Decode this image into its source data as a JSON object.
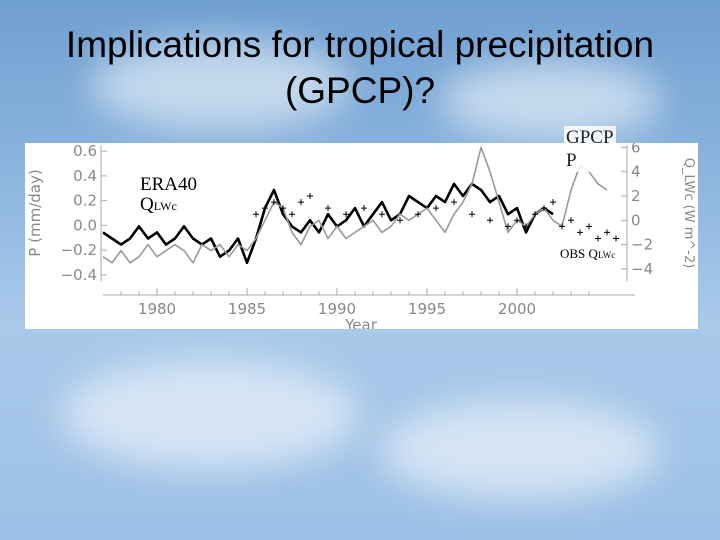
{
  "slide": {
    "title_line1": "Implications for tropical precipitation",
    "title_line2": "(GPCP)?"
  },
  "labels": {
    "era40": "ERA40",
    "q_main": "Q",
    "q_sub": "LWc",
    "gpcp_line1": "GPCP",
    "gpcp_line2": "P",
    "obs_main": "OBS Q",
    "obs_sub": "LWc"
  },
  "colors": {
    "era40": "#000000",
    "gpcp": "#999999",
    "obs": "#000000"
  },
  "chart_data": {
    "type": "line",
    "xlabel": "Year",
    "ylabel": "P (mm/day)",
    "ylabel_right": "Q_LWc (W m^-2)",
    "xlim": [
      1977,
      2006
    ],
    "ylim": [
      -0.45,
      0.65
    ],
    "ylim_right": [
      -5,
      6.2
    ],
    "x_ticks": [
      1980,
      1985,
      1990,
      1995,
      2000
    ],
    "y_ticks": [
      -0.4,
      -0.2,
      0.0,
      0.2,
      0.4,
      0.6
    ],
    "y_tick_labels": [
      "−0.4",
      "−0.2",
      "0.0",
      "0.2",
      "0.4",
      "0.6"
    ],
    "y_ticks_right": [
      -4,
      -2,
      0,
      2,
      4,
      6
    ],
    "y_tick_labels_right": [
      "−4",
      "−2",
      "0",
      "2",
      "4",
      "6"
    ],
    "series": [
      {
        "axis": "right",
        "style": "thick",
        "x": [
          1977.0,
          1977.5,
          1978.0,
          1978.5,
          1979.0,
          1979.5,
          1980.0,
          1980.5,
          1981.0,
          1981.5,
          1982.0,
          1982.5,
          1983.0,
          1983.5,
          1984.0,
          1984.5,
          1985.0,
          1985.5,
          1986.0,
          1986.5,
          1987.0,
          1987.5,
          1988.0,
          1988.5,
          1989.0,
          1989.5,
          1990.0,
          1990.5,
          1991.0,
          1991.5,
          1992.0,
          1992.5,
          1993.0,
          1993.5,
          1994.0,
          1994.5,
          1995.0,
          1995.5,
          1996.0,
          1996.5,
          1997.0,
          1997.5,
          1998.0,
          1998.5,
          1999.0,
          1999.5,
          2000.0,
          2000.5,
          2001.0,
          2001.5,
          2002.0
        ],
        "values": [
          -1.0,
          -1.5,
          -2.0,
          -1.5,
          -0.5,
          -1.5,
          -1.0,
          -2.0,
          -1.5,
          -0.5,
          -1.5,
          -2.0,
          -1.5,
          -3.0,
          -2.5,
          -1.5,
          -3.5,
          -1.5,
          1.0,
          2.5,
          0.5,
          -0.5,
          -1.0,
          0.0,
          -1.0,
          0.5,
          -0.5,
          0.0,
          1.0,
          -0.5,
          0.5,
          1.5,
          0.0,
          0.5,
          2.0,
          1.5,
          1.0,
          2.0,
          1.5,
          3.0,
          2.0,
          3.0,
          2.5,
          1.5,
          2.0,
          0.5,
          1.0,
          -1.0,
          0.5,
          1.0,
          0.5
        ]
      },
      {
        "axis": "right",
        "style": "gray",
        "x": [
          1977.0,
          1977.5,
          1978.0,
          1978.5,
          1979.0,
          1979.5,
          1980.0,
          1980.5,
          1981.0,
          1981.5,
          1982.0,
          1982.5,
          1983.0,
          1983.5,
          1984.0,
          1984.5,
          1985.0,
          1985.5,
          1986.0,
          1986.5,
          1987.0,
          1987.5,
          1988.0,
          1988.5,
          1989.0,
          1989.5,
          1990.0,
          1990.5,
          1991.0,
          1991.5,
          1992.0,
          1992.5,
          1993.0,
          1993.5,
          1994.0,
          1994.5,
          1995.0,
          1995.5,
          1996.0,
          1996.5,
          1997.0,
          1997.5,
          1998.0,
          1998.5,
          1999.0,
          1999.5,
          2000.0,
          2000.5,
          2001.0,
          2001.5,
          2002.0,
          2002.5,
          2003.0,
          2003.5,
          2004.0,
          2004.5,
          2005.0
        ],
        "values": [
          -3.0,
          -3.5,
          -2.5,
          -3.5,
          -3.0,
          -2.0,
          -3.0,
          -2.5,
          -2.0,
          -2.5,
          -3.5,
          -2.0,
          -2.5,
          -2.0,
          -3.0,
          -2.0,
          -2.5,
          -1.5,
          0.0,
          1.5,
          1.0,
          -1.0,
          -2.0,
          -0.5,
          0.0,
          -1.5,
          -0.5,
          -1.5,
          -1.0,
          -0.5,
          0.0,
          -1.0,
          -0.5,
          0.5,
          0.0,
          0.5,
          1.0,
          0.0,
          -1.0,
          0.5,
          1.5,
          3.0,
          6.0,
          4.0,
          1.5,
          -1.0,
          0.0,
          -0.5,
          0.5,
          1.0,
          0.0,
          -0.5,
          2.5,
          4.5,
          4.0,
          3.0,
          2.5
        ]
      },
      {
        "axis": "right",
        "style": "plus",
        "x": [
          1985.5,
          1986.0,
          1986.5,
          1987.0,
          1987.5,
          1988.0,
          1988.5,
          1989.5,
          1990.5,
          1991.5,
          1992.5,
          1993.5,
          1994.5,
          1995.5,
          1996.5,
          1997.5,
          1998.5,
          1999.5,
          2000.0,
          2000.5,
          2001.0,
          2001.5,
          2002.0,
          2002.5,
          2003.0,
          2003.5,
          2004.0,
          2004.5,
          2005.0,
          2005.5
        ],
        "values": [
          0.5,
          1.0,
          1.5,
          1.0,
          0.5,
          1.5,
          2.0,
          1.0,
          0.5,
          1.0,
          0.5,
          0.0,
          0.5,
          1.0,
          1.5,
          0.5,
          0.0,
          -0.5,
          0.0,
          -0.5,
          0.5,
          1.0,
          1.5,
          -0.5,
          0.0,
          -1.0,
          -0.5,
          -1.5,
          -1.0,
          -1.5
        ]
      }
    ]
  }
}
